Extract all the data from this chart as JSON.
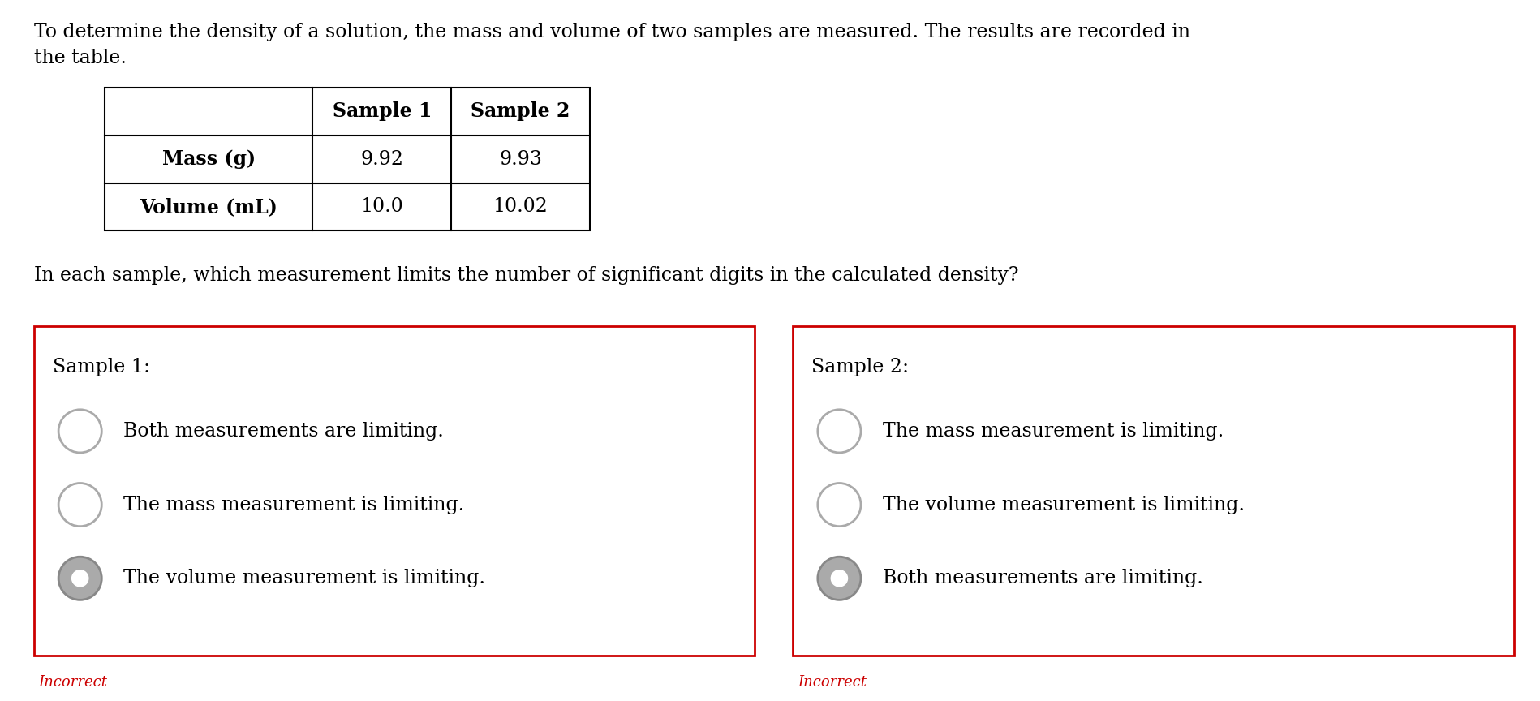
{
  "background_color": "#ffffff",
  "intro_text_line1": "To determine the density of a solution, the mass and volume of two samples are measured. The results are recorded in",
  "intro_text_line2": "the table.",
  "question_text": "In each sample, which measurement limits the number of significant digits in the calculated density?",
  "table": {
    "col_headers": [
      "",
      "Sample 1",
      "Sample 2"
    ],
    "rows": [
      [
        "Mass (g)",
        "9.92",
        "9.93"
      ],
      [
        "Volume (mL)",
        "10.0",
        "10.02"
      ]
    ]
  },
  "sample1_label": "Sample 1:",
  "sample2_label": "Sample 2:",
  "sample1_options": [
    {
      "text": "Both measurements are limiting.",
      "selected": false
    },
    {
      "text": "The mass measurement is limiting.",
      "selected": false
    },
    {
      "text": "The volume measurement is limiting.",
      "selected": true
    }
  ],
  "sample2_options": [
    {
      "text": "The mass measurement is limiting.",
      "selected": false
    },
    {
      "text": "The volume measurement is limiting.",
      "selected": false
    },
    {
      "text": "Both measurements are limiting.",
      "selected": true
    }
  ],
  "incorrect_text": "Incorrect",
  "incorrect_color": "#cc0000",
  "box_border_color": "#cc0000",
  "text_color": "#000000",
  "font_size_body": 17,
  "font_size_small": 13,
  "font_size_label": 17
}
